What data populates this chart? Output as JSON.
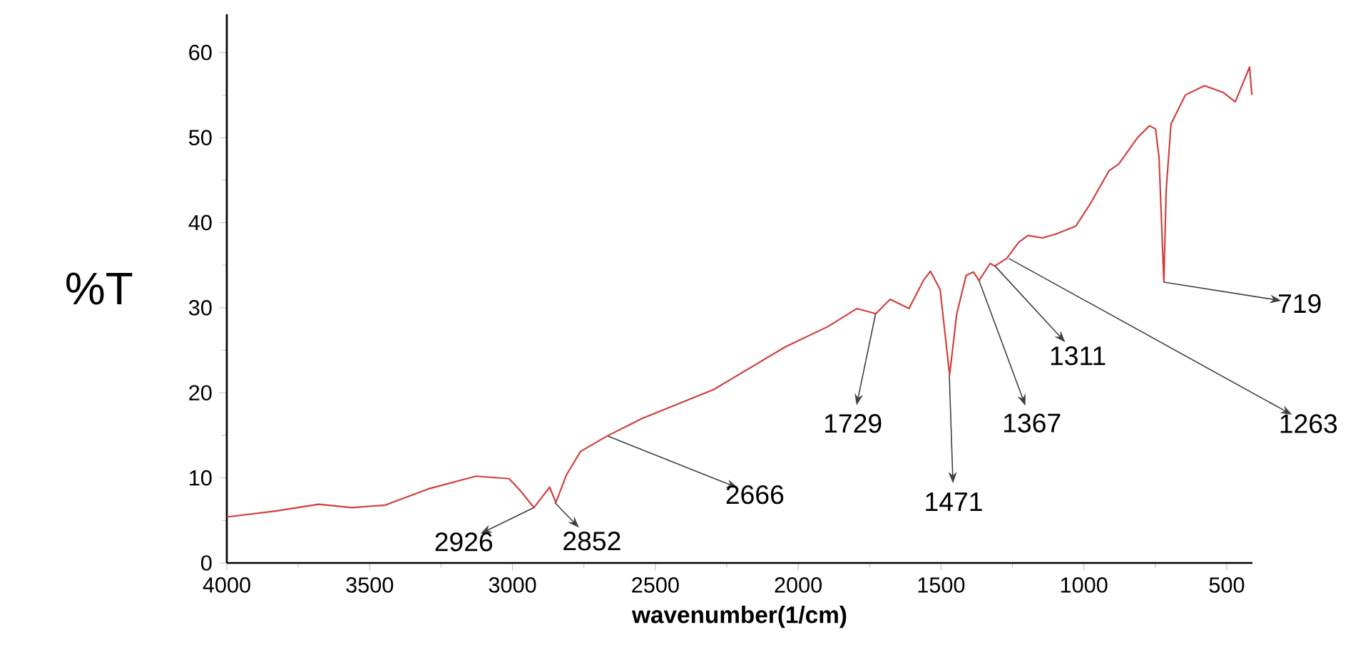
{
  "chart_data": {
    "type": "line",
    "xlabel": "wavenumber(1/cm)",
    "ylabel": "%T",
    "xlim": [
      4000,
      410
    ],
    "ylim": [
      0,
      64.5
    ],
    "xticks": [
      4000,
      3500,
      3000,
      2500,
      2000,
      1500,
      1000,
      500
    ],
    "yticks": [
      0,
      10,
      20,
      30,
      40,
      50,
      60
    ],
    "color": "#d23c3c",
    "x": [
      4000,
      3828,
      3678,
      3562,
      3445,
      3295,
      3128,
      3012,
      2970,
      2925,
      2870,
      2848,
      2812,
      2762,
      2670,
      2545,
      2295,
      2045,
      1895,
      1795,
      1728,
      1678,
      1612,
      1562,
      1537,
      1503,
      1470,
      1445,
      1412,
      1387,
      1367,
      1328,
      1312,
      1270,
      1228,
      1195,
      1145,
      1095,
      1028,
      978,
      912,
      878,
      812,
      770,
      749,
      737,
      720,
      712,
      695,
      645,
      578,
      512,
      470,
      420,
      412
    ],
    "values": [
      5.4,
      6.1,
      6.9,
      6.5,
      6.8,
      8.7,
      10.2,
      9.9,
      8.4,
      6.5,
      8.9,
      7.1,
      10.3,
      13.1,
      14.9,
      17.0,
      20.4,
      25.4,
      27.8,
      29.9,
      29.3,
      31.0,
      29.9,
      33.2,
      34.3,
      32.1,
      22.1,
      29.3,
      33.8,
      34.2,
      33.2,
      35.2,
      34.9,
      35.8,
      37.7,
      38.5,
      38.2,
      38.7,
      39.6,
      42.2,
      46.1,
      46.9,
      50.0,
      51.4,
      51.0,
      47.7,
      33.0,
      43.8,
      51.6,
      55.0,
      56.1,
      55.3,
      54.2,
      58.3,
      55.0
    ],
    "annotations": [
      {
        "text": "2926",
        "x": 2926,
        "y": 6.5
      },
      {
        "text": "2852",
        "x": 2852,
        "y": 7.1
      },
      {
        "text": "2666",
        "x": 2666,
        "y": 14.9
      },
      {
        "text": "1729",
        "x": 1729,
        "y": 29.3
      },
      {
        "text": "1471",
        "x": 1471,
        "y": 22.1
      },
      {
        "text": "1367",
        "x": 1367,
        "y": 33.2
      },
      {
        "text": "1311",
        "x": 1311,
        "y": 34.9
      },
      {
        "text": "1263",
        "x": 1263,
        "y": 35.8
      },
      {
        "text": "719",
        "x": 719,
        "y": 33.0
      }
    ]
  }
}
